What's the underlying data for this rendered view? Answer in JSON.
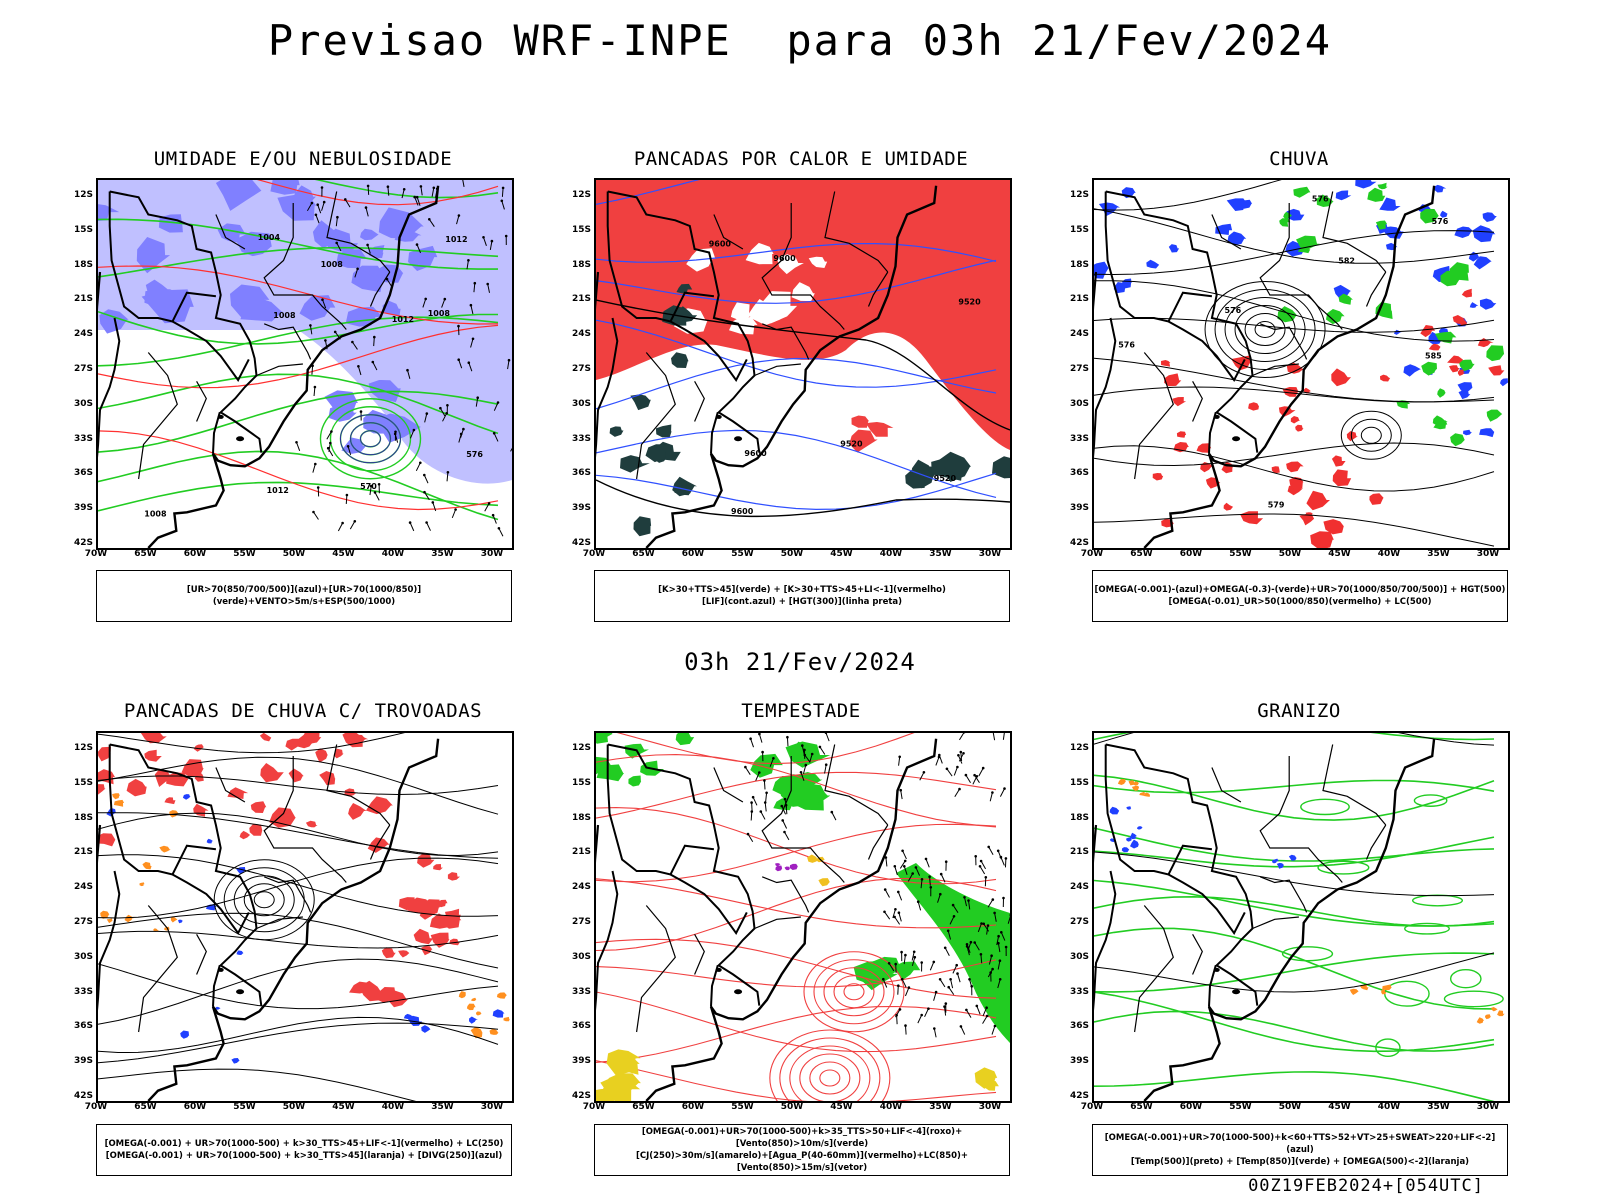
{
  "title": "Previsao WRF-INPE  para 03h 21/Fev/2024",
  "mid_date": "03h 21/Fev/2024",
  "footer": "00Z19FEB2024+[054UTC]",
  "lat_labels": [
    "12S",
    "15S",
    "18S",
    "21S",
    "24S",
    "27S",
    "30S",
    "33S",
    "36S",
    "39S",
    "42S"
  ],
  "lon_labels": [
    "70W",
    "65W",
    "60W",
    "55W",
    "50W",
    "45W",
    "40W",
    "35W",
    "30W"
  ],
  "panels": [
    {
      "id": "umidade",
      "title": "UMIDADE E/OU NEBULOSIDADE",
      "legend": [
        "[UR>70(850/700/500)](azul)+[UR>70(1000/850)](verde)+VENTO>5m/s+ESP(500/1000)"
      ],
      "contour_labels": [
        "1008",
        "1012",
        "1008",
        "1004",
        "1008",
        "1012",
        "570",
        "576",
        "1012",
        "1008"
      ],
      "colors": {
        "humid_high": "#8080ff",
        "humid_light": "#c0c0ff",
        "humid_low": "#22cc22",
        "thickness": "#ff3030"
      }
    },
    {
      "id": "pancadas_calor",
      "title": "PANCADAS POR CALOR E UMIDADE",
      "legend": [
        "[K>30+TTS>45](verde) + [K>30+TTS>45+LI<-1](vermelho)",
        "[LIF](cont.azul) + [HGT(300)](linha preta)"
      ],
      "contour_labels": [
        "9600",
        "9600",
        "9520",
        "9600",
        "9600",
        "9520",
        "9520"
      ],
      "colors": {
        "instab": "#f04040",
        "k_tts": "#1f3d3d",
        "lif": "#3050ff"
      }
    },
    {
      "id": "chuva",
      "title": "CHUVA",
      "legend": [
        "[OMEGA(-0.001)-(azul)+OMEGA(-0.3)-(verde)+UR>70(1000/850/700/500)] + HGT(500)",
        "[OMEGA(-0.01)_UR>50(1000/850)(vermelho) + LC(500)"
      ],
      "contour_labels": [
        "585",
        "576",
        "582",
        "576",
        "579",
        "576",
        "576"
      ],
      "colors": {
        "weak": "#2040ff",
        "strong": "#22cc22",
        "red": "#f03030"
      }
    },
    {
      "id": "trovoadas",
      "title": "PANCADAS DE CHUVA C/ TROVOADAS",
      "legend": [
        "[OMEGA(-0.001) + UR>70(1000-500) + k>30_TTS>45+LIF<-1](vermelho) + LC(250)",
        "[OMEGA(-0.001) + UR>70(1000-500) + k>30_TTS>45](laranja) + [DIVG(250)](azul)"
      ],
      "contour_labels": [],
      "colors": {
        "red": "#f04040",
        "orange": "#ff9020",
        "blue": "#2040ff"
      }
    },
    {
      "id": "tempestade",
      "title": "TEMPESTADE",
      "legend": [
        "[OMEGA(-0.001)+UR>70(1000-500)+k>35_TTS>50+LIF<-4](roxo)+[Vento(850)>10m/s](verde)",
        "[CJ(250)>30m/s](amarelo)+[Agua_P(40-60mm)](vermelho)+LC(850)+[Vento(850)>15m/s](vetor)"
      ],
      "contour_labels": [],
      "colors": {
        "green": "#22cc22",
        "red": "#f04040",
        "yellow": "#e8d020",
        "purple": "#a020c0"
      }
    },
    {
      "id": "granizo",
      "title": "GRANIZO",
      "legend": [
        "[OMEGA(-0.001)+UR>70(1000-500)+k<60+TTS>52+VT>25+SWEAT>220+LIF<-2](azul)",
        "[Temp(500)](preto) + [Temp(850)](verde) + [OMEGA(500)<-2](laranja)"
      ],
      "contour_labels": [],
      "colors": {
        "green": "#22cc22",
        "blue": "#2040ff",
        "orange": "#ff9020"
      }
    }
  ]
}
